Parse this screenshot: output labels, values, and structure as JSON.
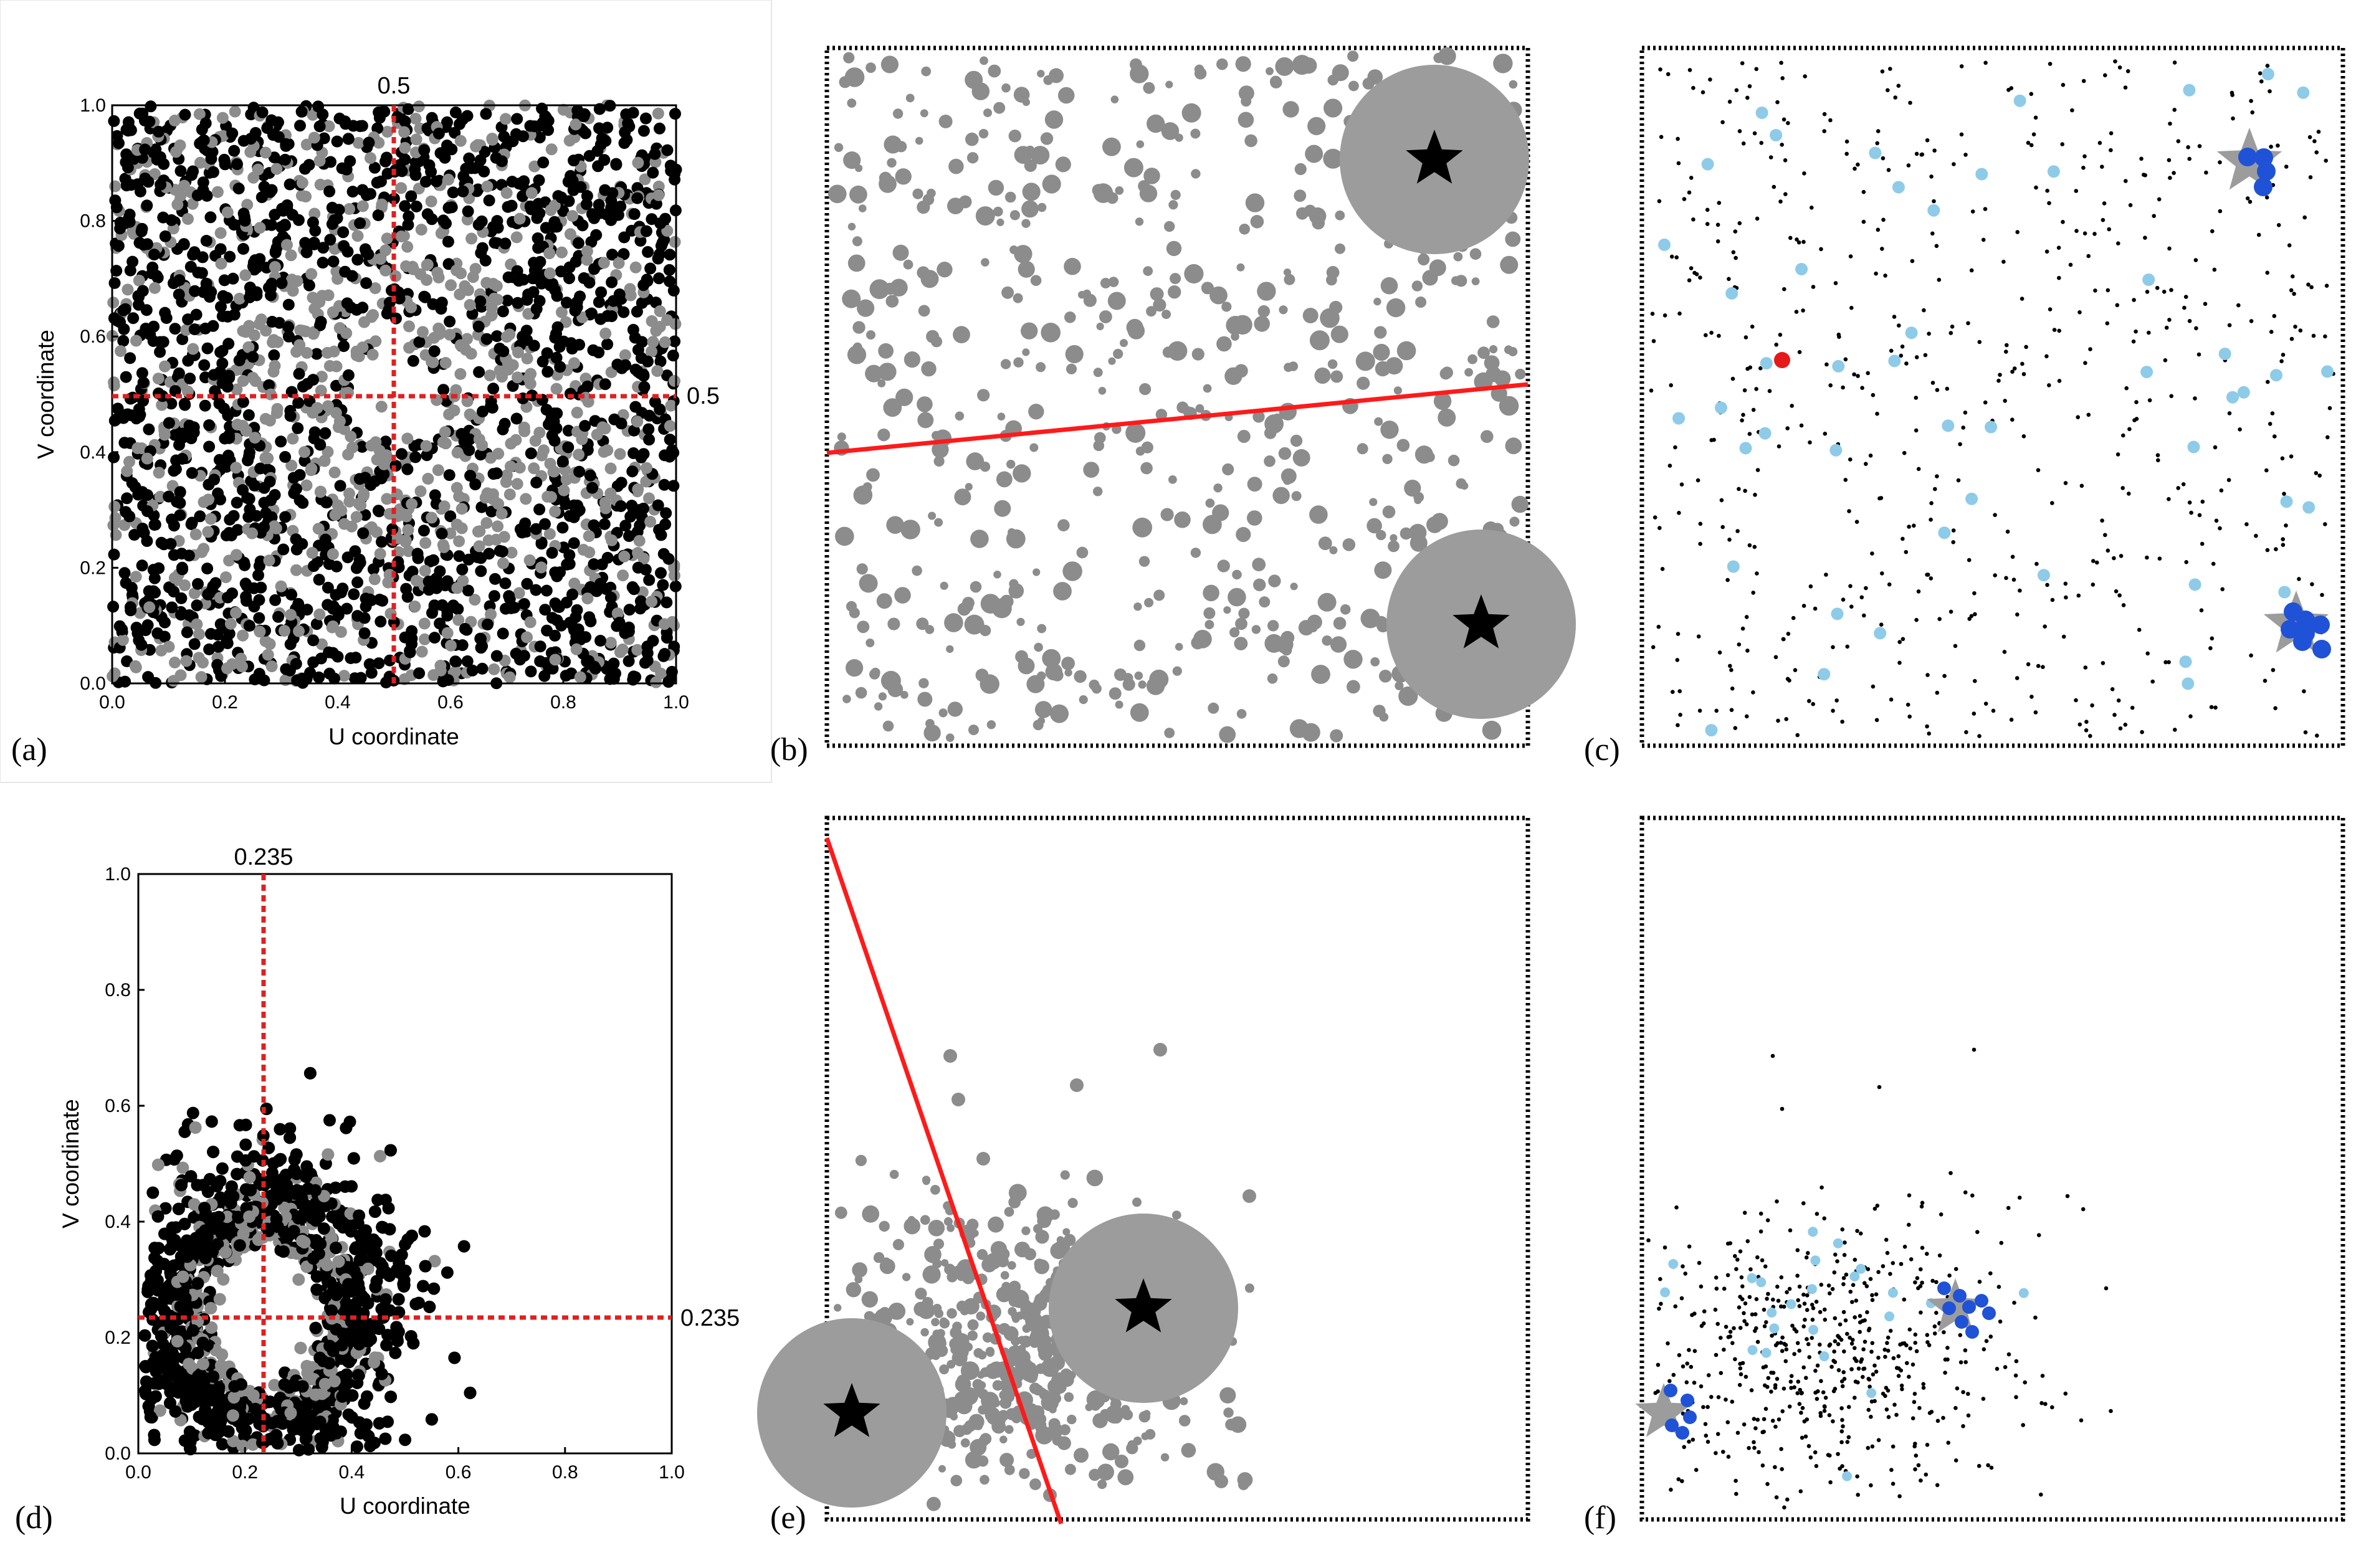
{
  "panels": {
    "a": {
      "letter": "(a)",
      "xlabel": "U coordinate",
      "ylabel": "V coordinate",
      "xticks": [
        "0.0",
        "0.2",
        "0.4",
        "0.6",
        "0.8",
        "1.0"
      ],
      "yticks": [
        "0.0",
        "0.2",
        "0.4",
        "0.6",
        "0.8",
        "1.0"
      ],
      "guide_label_x": "0.5",
      "guide_label_y": "0.5"
    },
    "b": {
      "letter": "(b)"
    },
    "c": {
      "letter": "(c)"
    },
    "d": {
      "letter": "(d)",
      "xlabel": "U coordinate",
      "ylabel": "V coordinate",
      "xticks": [
        "0.0",
        "0.2",
        "0.4",
        "0.6",
        "0.8",
        "1.0"
      ],
      "yticks": [
        "0.0",
        "0.2",
        "0.4",
        "0.6",
        "0.8",
        "1.0"
      ],
      "guide_label_x": "0.235",
      "guide_label_y": "0.235"
    },
    "e": {
      "letter": "(e)"
    },
    "f": {
      "letter": "(f)"
    }
  },
  "colors": {
    "black_points": "#000000",
    "gray_points": "#8c8c8c",
    "guide_line": "#e02020",
    "split_line": "#ff1a1a",
    "light_blue_points": "#8ecbe8",
    "dark_blue_points": "#1f52d6",
    "red_point": "#e61919",
    "star_gray": "#9c9c9c",
    "frame": "#000000"
  },
  "chart_data": [
    {
      "panel": "a",
      "type": "scatter",
      "xlabel": "U coordinate",
      "ylabel": "V coordinate",
      "xlim": [
        0,
        1
      ],
      "ylim": [
        0,
        1
      ],
      "guides": {
        "x": 0.5,
        "y": 0.5
      },
      "series": [],
      "distribution": "uniform over unit square, mixed black and gray points"
    },
    {
      "panel": "b",
      "type": "scatter",
      "xlim": [
        0,
        1
      ],
      "ylim": [
        0,
        1
      ],
      "stars": [
        [
          0.87,
          0.86
        ],
        [
          0.94,
          0.18
        ]
      ],
      "split_line": [
        [
          0.0,
          0.42
        ],
        [
          1.0,
          0.52
        ]
      ]
    },
    {
      "panel": "c",
      "type": "scatter",
      "xlim": [
        0,
        1
      ],
      "ylim": [
        0,
        1
      ],
      "stars": [
        [
          0.86,
          0.86
        ],
        [
          0.93,
          0.18
        ]
      ],
      "red_point": [
        0.2,
        0.56
      ]
    },
    {
      "panel": "d",
      "type": "scatter",
      "xlabel": "U coordinate",
      "ylabel": "V coordinate",
      "xlim": [
        0,
        1
      ],
      "ylim": [
        0,
        1
      ],
      "guides": {
        "x": 0.235,
        "y": 0.235
      },
      "series": [],
      "distribution": "ring around (0.235, 0.235), radius about 0.17"
    },
    {
      "panel": "e",
      "type": "scatter",
      "xlim": [
        0,
        1
      ],
      "ylim": [
        0,
        1
      ],
      "stars": [
        [
          0.02,
          0.14
        ],
        [
          0.45,
          0.29
        ]
      ],
      "split_line": [
        [
          0.0,
          1.0
        ],
        [
          0.33,
          0.0
        ]
      ]
    },
    {
      "panel": "f",
      "type": "scatter",
      "xlim": [
        0,
        1
      ],
      "ylim": [
        0,
        1
      ],
      "stars": [
        [
          0.03,
          0.14
        ],
        [
          0.45,
          0.29
        ]
      ]
    }
  ]
}
